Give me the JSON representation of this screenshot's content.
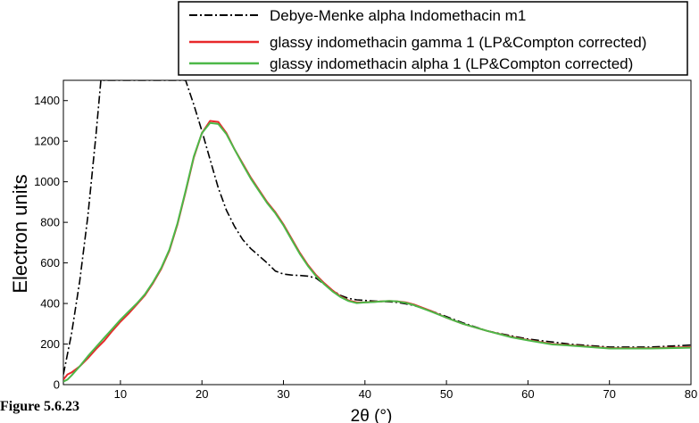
{
  "caption": "Figure 5.6.23",
  "chart_data": {
    "type": "line",
    "title": "",
    "xlabel": "2θ (°)",
    "ylabel": "Electron units",
    "xlim": [
      3,
      80
    ],
    "ylim": [
      0,
      1500
    ],
    "xticks": [
      10,
      20,
      30,
      40,
      50,
      60,
      70,
      80
    ],
    "yticks": [
      0,
      200,
      400,
      600,
      800,
      1000,
      1200,
      1400
    ],
    "grid": false,
    "legend_position": "top-center",
    "series": [
      {
        "name": "Debye-Menke alpha Indomethacin m1",
        "color": "#000000",
        "style": "dash-dot",
        "x": [
          3,
          4,
          5,
          6,
          7,
          7.6,
          18,
          19,
          20,
          21,
          22,
          23,
          24,
          25,
          26,
          27,
          28,
          29,
          30,
          31,
          32,
          33,
          34,
          35,
          36,
          37,
          38,
          39,
          40,
          41,
          42,
          43,
          44,
          45,
          46,
          48,
          50,
          52,
          55,
          58,
          60,
          65,
          70,
          75,
          80
        ],
        "y": [
          50,
          250,
          510,
          830,
          1230,
          1500,
          1500,
          1380,
          1250,
          1110,
          970,
          860,
          780,
          715,
          670,
          635,
          600,
          560,
          545,
          540,
          538,
          535,
          525,
          495,
          465,
          440,
          425,
          418,
          415,
          412,
          410,
          408,
          405,
          398,
          390,
          365,
          335,
          305,
          265,
          240,
          225,
          200,
          185,
          185,
          195
        ]
      },
      {
        "name": "glassy indomethacin gamma 1 (LP&Compton corrected)",
        "color": "#e8282b",
        "style": "solid",
        "x": [
          3,
          3.5,
          4,
          5,
          6,
          7,
          8,
          9,
          10,
          11,
          12,
          13,
          14,
          15,
          16,
          17,
          18,
          19,
          20,
          21,
          22,
          23,
          24,
          25,
          26,
          27,
          28,
          29,
          30,
          31,
          32,
          33,
          34,
          35,
          36,
          37,
          38,
          39,
          40,
          41,
          42,
          43,
          44,
          45,
          46,
          48,
          50,
          52,
          55,
          58,
          60,
          63,
          65,
          70,
          75,
          80
        ],
        "y": [
          25,
          50,
          60,
          90,
          130,
          175,
          215,
          265,
          310,
          350,
          395,
          440,
          500,
          570,
          660,
          790,
          950,
          1120,
          1240,
          1300,
          1295,
          1240,
          1160,
          1090,
          1020,
          960,
          900,
          850,
          790,
          720,
          650,
          590,
          540,
          500,
          465,
          435,
          415,
          405,
          405,
          408,
          410,
          412,
          410,
          405,
          395,
          365,
          330,
          300,
          265,
          235,
          220,
          200,
          195,
          180,
          180,
          185
        ]
      },
      {
        "name": "glassy indomethacin alpha 1 (LP&Compton corrected)",
        "color": "#4cb848",
        "style": "solid",
        "x": [
          3,
          3.5,
          4,
          5,
          6,
          7,
          8,
          9,
          10,
          11,
          12,
          13,
          14,
          15,
          16,
          17,
          18,
          19,
          20,
          21,
          22,
          23,
          24,
          25,
          26,
          27,
          28,
          29,
          30,
          31,
          32,
          33,
          34,
          35,
          36,
          37,
          38,
          39,
          40,
          41,
          42,
          43,
          44,
          45,
          46,
          48,
          50,
          52,
          55,
          58,
          60,
          63,
          65,
          70,
          75,
          80
        ],
        "y": [
          15,
          25,
          45,
          90,
          140,
          185,
          230,
          275,
          320,
          360,
          400,
          445,
          505,
          575,
          665,
          795,
          955,
          1125,
          1240,
          1290,
          1285,
          1235,
          1160,
          1085,
          1015,
          955,
          895,
          845,
          785,
          715,
          645,
          585,
          535,
          495,
          460,
          432,
          412,
          402,
          405,
          407,
          410,
          412,
          410,
          403,
          392,
          362,
          330,
          300,
          265,
          233,
          218,
          198,
          193,
          178,
          178,
          182
        ]
      }
    ]
  }
}
